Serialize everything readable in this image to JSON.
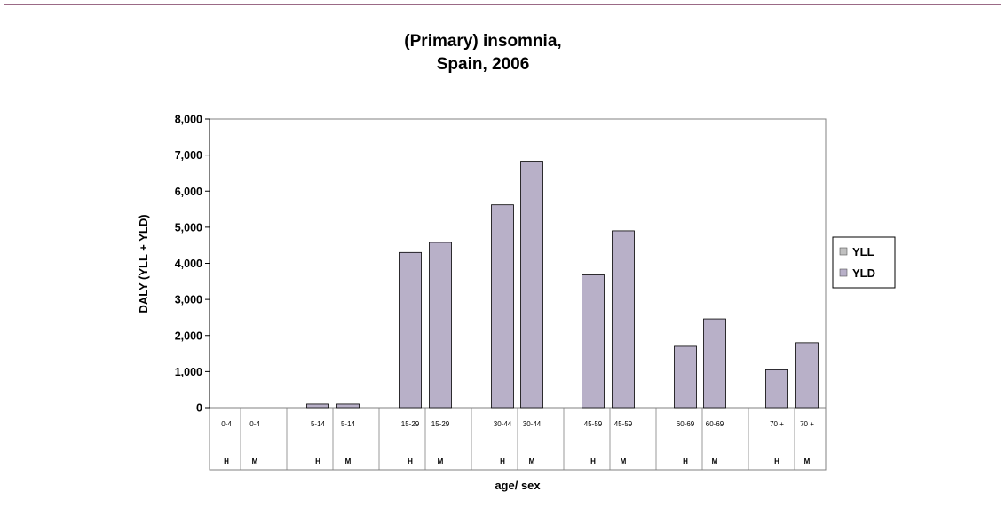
{
  "chart_data": {
    "type": "bar",
    "title_lines": [
      "(Primary) insomnia,",
      "Spain, 2006"
    ],
    "xlabel": "age/ sex",
    "ylabel": "DALY (YLL + YLD)",
    "ylim": [
      0,
      8000
    ],
    "yticks": [
      "0",
      "1,000",
      "2,000",
      "3,000",
      "4,000",
      "5,000",
      "6,000",
      "7,000",
      "8,000"
    ],
    "grid": false,
    "legend_position": "right",
    "categories": [
      {
        "age": "0-4",
        "sex": "H"
      },
      {
        "age": "0-4",
        "sex": "M"
      },
      {
        "age": "5-14",
        "sex": "H"
      },
      {
        "age": "5-14",
        "sex": "M"
      },
      {
        "age": "15-29",
        "sex": "H"
      },
      {
        "age": "15-29",
        "sex": "M"
      },
      {
        "age": "30-44",
        "sex": "H"
      },
      {
        "age": "30-44",
        "sex": "M"
      },
      {
        "age": "45-59",
        "sex": "H"
      },
      {
        "age": "45-59",
        "sex": "M"
      },
      {
        "age": "60-69",
        "sex": "H"
      },
      {
        "age": "60-69",
        "sex": "M"
      },
      {
        "age": "70 +",
        "sex": "H"
      },
      {
        "age": "70 +",
        "sex": "M"
      }
    ],
    "series": [
      {
        "name": "YLL",
        "color": "#c0c0c0",
        "values": [
          0,
          0,
          0,
          0,
          0,
          0,
          0,
          0,
          0,
          0,
          0,
          0,
          0,
          0
        ]
      },
      {
        "name": "YLD",
        "color": "#b8b0c8",
        "values": [
          0,
          0,
          100,
          100,
          4300,
          4580,
          5620,
          6830,
          3680,
          4900,
          1700,
          2460,
          1050,
          1800
        ]
      }
    ]
  }
}
